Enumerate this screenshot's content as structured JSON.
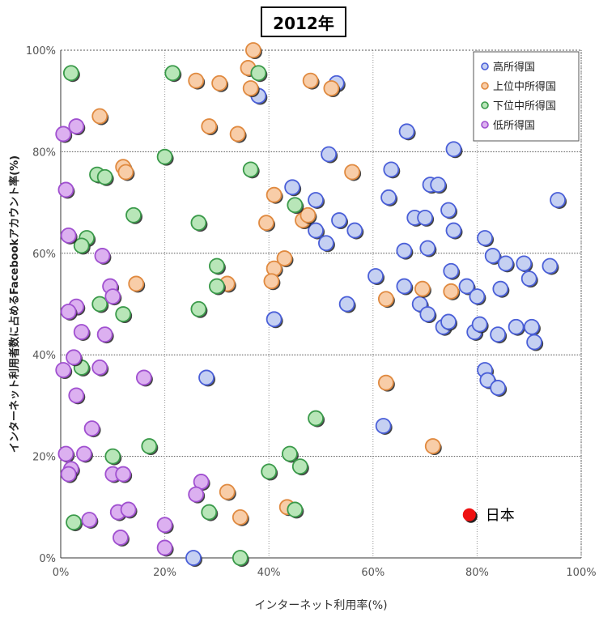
{
  "chart_data": {
    "type": "scatter",
    "title": "2012年",
    "xlabel": "インターネット利用率(%)",
    "ylabel": "インターネット利用者数に占めるFacebookアカウント率(%)",
    "xlim": [
      0,
      100
    ],
    "ylim": [
      0,
      100
    ],
    "x_ticks": [
      "0%",
      "20%",
      "40%",
      "60%",
      "80%",
      "100%"
    ],
    "y_ticks": [
      "0%",
      "20%",
      "40%",
      "60%",
      "80%",
      "100%"
    ],
    "grid": true,
    "legend_position": "top-right",
    "series": [
      {
        "name": "高所得国",
        "color": "#4a5fd8",
        "fill": "#c5d0f2",
        "points": [
          [
            38,
            91
          ],
          [
            53,
            93.5
          ],
          [
            51.5,
            79.5
          ],
          [
            66.5,
            84
          ],
          [
            75.5,
            80.5
          ],
          [
            95.5,
            70.5
          ],
          [
            44.5,
            73
          ],
          [
            49,
            70.5
          ],
          [
            63.5,
            76.5
          ],
          [
            63,
            71
          ],
          [
            71,
            73.5
          ],
          [
            72.5,
            73.5
          ],
          [
            74.5,
            68.5
          ],
          [
            68,
            67
          ],
          [
            70,
            67
          ],
          [
            75.5,
            64.5
          ],
          [
            81.5,
            63
          ],
          [
            53.5,
            66.5
          ],
          [
            56.5,
            64.5
          ],
          [
            49,
            64.5
          ],
          [
            51,
            62
          ],
          [
            66,
            60.5
          ],
          [
            70.5,
            61
          ],
          [
            83,
            59.5
          ],
          [
            85.5,
            58
          ],
          [
            89,
            58
          ],
          [
            94,
            57.5
          ],
          [
            60.5,
            55.5
          ],
          [
            66,
            53.5
          ],
          [
            75,
            56.5
          ],
          [
            78,
            53.5
          ],
          [
            80,
            51.5
          ],
          [
            84.5,
            53
          ],
          [
            90,
            55
          ],
          [
            55,
            50
          ],
          [
            69,
            50
          ],
          [
            70.5,
            48
          ],
          [
            73.5,
            45.5
          ],
          [
            74.5,
            46.5
          ],
          [
            79.5,
            44.5
          ],
          [
            80.5,
            46
          ],
          [
            84,
            44
          ],
          [
            87.5,
            45.5
          ],
          [
            90.5,
            45.5
          ],
          [
            91,
            42.5
          ],
          [
            41,
            47
          ],
          [
            28,
            35.5
          ],
          [
            81.5,
            37
          ],
          [
            82,
            35
          ],
          [
            84,
            33.5
          ],
          [
            62,
            26
          ],
          [
            25.5,
            0
          ]
        ]
      },
      {
        "name": "上位中所得国",
        "color": "#e08a40",
        "fill": "#f8cda8",
        "points": [
          [
            37,
            100
          ],
          [
            36,
            96.5
          ],
          [
            36.5,
            92.5
          ],
          [
            26,
            94
          ],
          [
            30.5,
            93.5
          ],
          [
            48,
            94
          ],
          [
            52,
            92.5
          ],
          [
            7.5,
            87
          ],
          [
            28.5,
            85
          ],
          [
            34,
            83.5
          ],
          [
            12,
            77
          ],
          [
            12.5,
            76
          ],
          [
            56,
            76
          ],
          [
            41,
            71.5
          ],
          [
            46.5,
            66.5
          ],
          [
            47.5,
            67.5
          ],
          [
            39.5,
            66
          ],
          [
            41,
            57
          ],
          [
            43,
            59
          ],
          [
            40.5,
            54.5
          ],
          [
            14.5,
            54
          ],
          [
            32,
            54
          ],
          [
            62.5,
            51
          ],
          [
            69.5,
            53
          ],
          [
            75,
            52.5
          ],
          [
            62.5,
            34.5
          ],
          [
            71.5,
            22
          ],
          [
            32,
            13
          ],
          [
            34.5,
            8
          ],
          [
            43.5,
            10
          ]
        ]
      },
      {
        "name": "下位中所得国",
        "color": "#3a9a4a",
        "fill": "#b8e6b8",
        "points": [
          [
            2,
            95.5
          ],
          [
            21.5,
            95.5
          ],
          [
            38,
            95.5
          ],
          [
            20,
            79
          ],
          [
            7,
            75.5
          ],
          [
            8.5,
            75
          ],
          [
            36.5,
            76.5
          ],
          [
            14,
            67.5
          ],
          [
            26.5,
            66
          ],
          [
            45,
            69.5
          ],
          [
            5,
            63
          ],
          [
            4,
            61.5
          ],
          [
            30,
            57.5
          ],
          [
            30,
            53.5
          ],
          [
            7.5,
            50
          ],
          [
            12,
            48
          ],
          [
            26.5,
            49
          ],
          [
            4,
            37.5
          ],
          [
            49,
            27.5
          ],
          [
            17,
            22
          ],
          [
            44,
            20.5
          ],
          [
            10,
            20
          ],
          [
            46,
            18
          ],
          [
            40,
            17
          ],
          [
            28.5,
            9
          ],
          [
            45,
            9.5
          ],
          [
            2.5,
            7
          ],
          [
            34.5,
            0
          ]
        ]
      },
      {
        "name": "低所得国",
        "color": "#a050d0",
        "fill": "#dcb0f0",
        "points": [
          [
            0.5,
            83.5
          ],
          [
            3,
            85
          ],
          [
            1,
            72.5
          ],
          [
            1.5,
            63.5
          ],
          [
            8,
            59.5
          ],
          [
            9.5,
            53.5
          ],
          [
            10,
            51.5
          ],
          [
            3,
            49.5
          ],
          [
            1.5,
            48.5
          ],
          [
            4,
            44.5
          ],
          [
            8.5,
            44
          ],
          [
            2.5,
            39.5
          ],
          [
            0.5,
            37
          ],
          [
            7.5,
            37.5
          ],
          [
            3,
            32
          ],
          [
            16,
            35.5
          ],
          [
            6,
            25.5
          ],
          [
            1,
            20.5
          ],
          [
            4.5,
            20.5
          ],
          [
            2,
            17.5
          ],
          [
            1.5,
            16.5
          ],
          [
            10,
            16.5
          ],
          [
            12,
            16.5
          ],
          [
            27,
            15
          ],
          [
            26,
            12.5
          ],
          [
            11,
            9
          ],
          [
            13,
            9.5
          ],
          [
            5.5,
            7.5
          ],
          [
            20,
            6.5
          ],
          [
            11.5,
            4
          ],
          [
            20,
            2
          ]
        ]
      }
    ],
    "annotation": {
      "label": "日本",
      "x": 78.5,
      "y": 8.5,
      "color": "#ee1111"
    }
  }
}
